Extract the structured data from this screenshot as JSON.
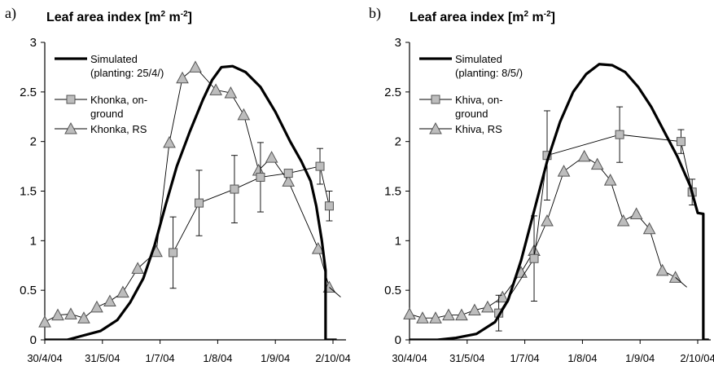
{
  "chart_data": [
    {
      "type": "line",
      "panel_label": "a)",
      "title": "Leaf area index [m",
      "title_sup1": "2",
      "title_mid": " m",
      "title_sup2": "-2",
      "title_end": "]",
      "ylim": [
        0,
        3
      ],
      "yticks": [
        "0",
        "0.5",
        "1",
        "1.5",
        "2",
        "2.5",
        "3"
      ],
      "xticks": [
        "30/4/04",
        "31/5/04",
        "1/7/04",
        "1/8/04",
        "1/9/04",
        "2/10/04"
      ],
      "grid": false,
      "legend_position": "top-left",
      "series": [
        {
          "name": "Simulated",
          "name_line2": "(planting: 25/4/)",
          "style": "thick-line",
          "color": "#000000",
          "x": [
            "2004-04-30",
            "2004-05-12",
            "2004-05-20",
            "2004-05-30",
            "2004-06-08",
            "2004-06-15",
            "2004-06-22",
            "2004-06-28",
            "2004-07-04",
            "2004-07-10",
            "2004-07-17",
            "2004-07-24",
            "2004-07-29",
            "2004-08-03",
            "2004-08-09",
            "2004-08-16",
            "2004-08-24",
            "2004-09-01",
            "2004-09-09",
            "2004-09-15",
            "2004-09-20",
            "2004-09-23",
            "2004-09-26",
            "2004-09-28",
            "2004-09-28",
            "2004-10-04"
          ],
          "y": [
            0,
            0,
            0.04,
            0.09,
            0.2,
            0.38,
            0.62,
            0.95,
            1.36,
            1.75,
            2.1,
            2.42,
            2.62,
            2.75,
            2.76,
            2.7,
            2.55,
            2.3,
            2.0,
            1.8,
            1.6,
            1.35,
            1.0,
            0.7,
            0,
            0
          ]
        },
        {
          "name": "Khonka, on-",
          "name_line2": "ground",
          "style": "line-square",
          "color": "#bdbdbd",
          "x": [
            "2004-07-08",
            "2004-07-22",
            "2004-08-10",
            "2004-08-24",
            "2004-09-08",
            "2004-09-25",
            "2004-09-30"
          ],
          "y": [
            0.88,
            1.38,
            1.52,
            1.64,
            1.68,
            1.75,
            1.35
          ],
          "error": [
            0.36,
            0.33,
            0.34,
            0.35,
            null,
            0.18,
            0.15
          ]
        },
        {
          "name": "Khonka, RS",
          "style": "line-triangle",
          "color": "#bdbdbd",
          "x": [
            "2004-04-30",
            "2004-05-07",
            "2004-05-14",
            "2004-05-21",
            "2004-05-28",
            "2004-06-04",
            "2004-06-11",
            "2004-06-19",
            "2004-06-29",
            "2004-07-06",
            "2004-07-13",
            "2004-07-20",
            "2004-07-31",
            "2004-08-08",
            "2004-08-15",
            "2004-08-23",
            "2004-08-30",
            "2004-09-08",
            "2004-09-24",
            "2004-09-30",
            "2004-10-10"
          ],
          "y": [
            0.18,
            0.25,
            0.26,
            0.22,
            0.33,
            0.39,
            0.48,
            0.72,
            0.89,
            1.99,
            2.64,
            2.75,
            2.52,
            2.49,
            2.27,
            1.71,
            1.84,
            1.6,
            0.92,
            0.53,
            null
          ]
        }
      ]
    },
    {
      "type": "line",
      "panel_label": "b)",
      "title": "Leaf area index [m",
      "title_sup1": "2",
      "title_mid": " m",
      "title_sup2": "-2",
      "title_end": "]",
      "ylim": [
        0,
        3
      ],
      "yticks": [
        "0",
        "0.5",
        "1",
        "1.5",
        "2",
        "2.5",
        "3"
      ],
      "xticks": [
        "30/4/04",
        "31/5/04",
        "1/7/04",
        "1/8/04",
        "1/9/04",
        "2/10/04"
      ],
      "grid": false,
      "legend_position": "top-left",
      "series": [
        {
          "name": "Simulated",
          "name_line2": "(planting: 8/5/)",
          "style": "thick-line",
          "color": "#000000",
          "x": [
            "2004-04-30",
            "2004-05-15",
            "2004-05-25",
            "2004-06-05",
            "2004-06-15",
            "2004-06-22",
            "2004-06-29",
            "2004-07-06",
            "2004-07-13",
            "2004-07-20",
            "2004-07-27",
            "2004-08-03",
            "2004-08-10",
            "2004-08-17",
            "2004-08-24",
            "2004-08-31",
            "2004-09-07",
            "2004-09-14",
            "2004-09-21",
            "2004-09-28",
            "2004-10-02",
            "2004-10-05",
            "2004-10-05",
            "2004-10-08"
          ],
          "y": [
            0,
            0,
            0.02,
            0.06,
            0.18,
            0.4,
            0.8,
            1.3,
            1.8,
            2.2,
            2.5,
            2.68,
            2.78,
            2.77,
            2.7,
            2.55,
            2.35,
            2.1,
            1.85,
            1.55,
            1.28,
            1.27,
            0,
            0
          ]
        },
        {
          "name": "Khiva, on-",
          "name_line2": "ground",
          "style": "line-square",
          "color": "#bdbdbd",
          "x": [
            "2004-06-17",
            "2004-07-06",
            "2004-07-13",
            "2004-08-21",
            "2004-09-23",
            "2004-09-29"
          ],
          "y": [
            0.27,
            0.82,
            1.86,
            2.07,
            2.0,
            1.49
          ],
          "error": [
            0.18,
            0.43,
            0.45,
            0.28,
            0.12,
            0.13
          ]
        },
        {
          "name": "Khiva, RS",
          "style": "line-triangle",
          "color": "#bdbdbd",
          "x": [
            "2004-04-30",
            "2004-05-07",
            "2004-05-14",
            "2004-05-21",
            "2004-05-28",
            "2004-06-04",
            "2004-06-11",
            "2004-06-19",
            "2004-06-29",
            "2004-07-06",
            "2004-07-13",
            "2004-07-22",
            "2004-08-02",
            "2004-08-09",
            "2004-08-16",
            "2004-08-23",
            "2004-08-30",
            "2004-09-06",
            "2004-09-13",
            "2004-09-20",
            "2004-09-27",
            "2004-10-06",
            "2004-10-14"
          ],
          "y": [
            0.26,
            0.22,
            0.22,
            0.25,
            0.25,
            0.3,
            0.33,
            0.43,
            0.68,
            0.9,
            1.2,
            1.7,
            1.85,
            1.77,
            1.61,
            1.2,
            1.27,
            1.12,
            0.7,
            0.63,
            null,
            null,
            null
          ]
        }
      ]
    }
  ]
}
